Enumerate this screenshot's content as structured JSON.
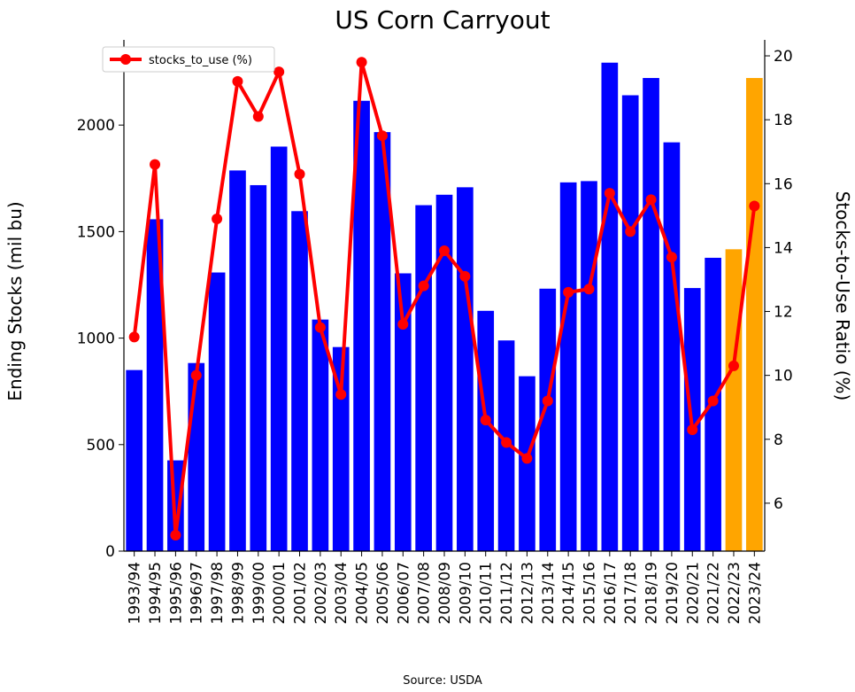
{
  "chart_data": {
    "type": "bar",
    "title": "US Corn Carryout",
    "ylabel": "Ending Stocks (mil bu)",
    "y2label": "Stocks-to-Use Ratio (%)",
    "source": "Source: USDA",
    "categories": [
      "1993/94",
      "1994/95",
      "1995/96",
      "1996/97",
      "1997/98",
      "1998/99",
      "1999/00",
      "2000/01",
      "2001/02",
      "2002/03",
      "2003/04",
      "2004/05",
      "2005/06",
      "2006/07",
      "2007/08",
      "2008/09",
      "2009/10",
      "2010/11",
      "2011/12",
      "2012/13",
      "2013/14",
      "2014/15",
      "2015/16",
      "2016/17",
      "2017/18",
      "2018/19",
      "2019/20",
      "2020/21",
      "2021/22",
      "2022/23",
      "2023/24"
    ],
    "ylim": [
      0,
      2400
    ],
    "y2lim": [
      4.5,
      20.5
    ],
    "y_ticks": [
      0,
      500,
      1000,
      1500,
      2000
    ],
    "y2_ticks": [
      6,
      8,
      10,
      12,
      14,
      16,
      18,
      20
    ],
    "grid": false,
    "legend": {
      "placement": "top-left",
      "entries": [
        "stocks_to_use (%)"
      ]
    },
    "series": [
      {
        "type": "bar",
        "axis": "left",
        "values": [
          850,
          1558,
          426,
          883,
          1308,
          1787,
          1718,
          1899,
          1596,
          1087,
          958,
          2114,
          1967,
          1304,
          1624,
          1673,
          1708,
          1128,
          989,
          821,
          1232,
          1731,
          1737,
          2293,
          2140,
          2221,
          1919,
          1235,
          1377,
          1417,
          2221
        ],
        "colors": [
          "#0000ff",
          "#0000ff",
          "#0000ff",
          "#0000ff",
          "#0000ff",
          "#0000ff",
          "#0000ff",
          "#0000ff",
          "#0000ff",
          "#0000ff",
          "#0000ff",
          "#0000ff",
          "#0000ff",
          "#0000ff",
          "#0000ff",
          "#0000ff",
          "#0000ff",
          "#0000ff",
          "#0000ff",
          "#0000ff",
          "#0000ff",
          "#0000ff",
          "#0000ff",
          "#0000ff",
          "#0000ff",
          "#0000ff",
          "#0000ff",
          "#0000ff",
          "#0000ff",
          "#ffa500",
          "#ffa500"
        ]
      },
      {
        "name": "stocks_to_use (%)",
        "type": "line",
        "axis": "right",
        "color": "#ff0000",
        "values": [
          11.2,
          16.6,
          5.0,
          10.0,
          14.9,
          19.2,
          18.1,
          19.5,
          16.3,
          11.5,
          9.4,
          19.8,
          17.5,
          11.6,
          12.8,
          13.9,
          13.1,
          8.6,
          7.9,
          7.4,
          9.2,
          12.6,
          12.7,
          15.7,
          14.5,
          15.5,
          13.7,
          8.3,
          9.2,
          10.3,
          15.3
        ]
      }
    ]
  }
}
